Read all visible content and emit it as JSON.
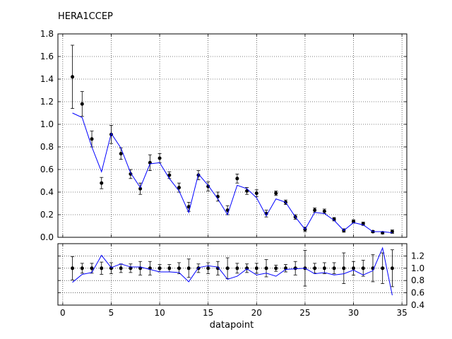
{
  "chart_data": [
    {
      "type": "scatter",
      "title": "HERA1CCEP",
      "xlabel": "datapoint",
      "ylabel": "",
      "xlim": [
        -0.5,
        35.5
      ],
      "ylim": [
        0,
        1.8
      ],
      "xticks": [
        "0",
        "5",
        "10",
        "15",
        "20",
        "25",
        "30",
        "35"
      ],
      "yticks": [
        "0.0",
        "0.2",
        "0.4",
        "0.6",
        "0.8",
        "1.0",
        "1.2",
        "1.4",
        "1.6",
        "1.8"
      ],
      "grid": true,
      "series": [
        {
          "kind": "points-with-errorbars",
          "color": "#000000",
          "x": [
            1,
            2,
            3,
            4,
            5,
            6,
            7,
            8,
            9,
            10,
            11,
            12,
            13,
            14,
            15,
            16,
            17,
            18,
            19,
            20,
            21,
            22,
            23,
            24,
            25,
            26,
            27,
            28,
            29,
            30,
            31,
            32,
            33,
            34
          ],
          "y": [
            1.42,
            1.18,
            0.87,
            0.48,
            0.91,
            0.74,
            0.56,
            0.43,
            0.66,
            0.7,
            0.55,
            0.44,
            0.27,
            0.55,
            0.45,
            0.36,
            0.24,
            0.52,
            0.41,
            0.39,
            0.21,
            0.39,
            0.31,
            0.18,
            0.07,
            0.24,
            0.23,
            0.16,
            0.06,
            0.14,
            0.12,
            0.05,
            0.04,
            0.05
          ],
          "err": [
            0.28,
            0.11,
            0.07,
            0.05,
            0.08,
            0.05,
            0.04,
            0.05,
            0.07,
            0.04,
            0.03,
            0.04,
            0.04,
            0.04,
            0.04,
            0.04,
            0.04,
            0.04,
            0.03,
            0.03,
            0.03,
            0.02,
            0.02,
            0.02,
            0.02,
            0.02,
            0.02,
            0.015,
            0.015,
            0.015,
            0.015,
            0.01,
            0.01,
            0.015
          ]
        },
        {
          "kind": "line",
          "color": "#0000ff",
          "x": [
            1,
            2,
            3,
            4,
            5,
            6,
            7,
            8,
            9,
            10,
            11,
            12,
            13,
            14,
            15,
            16,
            17,
            18,
            19,
            20,
            21,
            22,
            23,
            24,
            25,
            26,
            27,
            28,
            29,
            30,
            31,
            32,
            33,
            34
          ],
          "y": [
            1.1,
            1.06,
            0.8,
            0.58,
            0.92,
            0.79,
            0.57,
            0.44,
            0.65,
            0.66,
            0.52,
            0.41,
            0.22,
            0.56,
            0.46,
            0.34,
            0.2,
            0.46,
            0.43,
            0.35,
            0.19,
            0.34,
            0.31,
            0.18,
            0.07,
            0.22,
            0.21,
            0.15,
            0.06,
            0.13,
            0.11,
            0.05,
            0.05,
            0.04
          ]
        }
      ]
    },
    {
      "type": "scatter",
      "title": "",
      "xlabel": "datapoint",
      "ylabel": "",
      "xlim": [
        -0.5,
        35.5
      ],
      "ylim": [
        0.4,
        1.4
      ],
      "xticks": [
        "0",
        "5",
        "10",
        "15",
        "20",
        "25",
        "30",
        "35"
      ],
      "yticks": [
        "0.4",
        "0.6",
        "0.8",
        "1.0",
        "1.2"
      ],
      "grid": true,
      "series": [
        {
          "kind": "points-with-errorbars",
          "color": "#000000",
          "x": [
            1,
            2,
            3,
            4,
            5,
            6,
            7,
            8,
            9,
            10,
            11,
            12,
            13,
            14,
            15,
            16,
            17,
            18,
            19,
            20,
            21,
            22,
            23,
            24,
            25,
            26,
            27,
            28,
            29,
            30,
            31,
            32,
            33,
            34
          ],
          "y": [
            1,
            1,
            1,
            1,
            1,
            1,
            1,
            1,
            1,
            1,
            1,
            1,
            1,
            1,
            1,
            1,
            1,
            1,
            1,
            1,
            1,
            1,
            1,
            1,
            1,
            1,
            1,
            1,
            1,
            1,
            1,
            1,
            1,
            1
          ],
          "err": [
            0.19,
            0.08,
            0.08,
            0.1,
            0.09,
            0.07,
            0.07,
            0.11,
            0.11,
            0.06,
            0.06,
            0.09,
            0.15,
            0.07,
            0.09,
            0.11,
            0.17,
            0.08,
            0.07,
            0.08,
            0.14,
            0.05,
            0.06,
            0.11,
            0.29,
            0.08,
            0.09,
            0.09,
            0.25,
            0.11,
            0.13,
            0.22,
            0.25,
            0.3
          ]
        },
        {
          "kind": "line",
          "color": "#0000ff",
          "x": [
            1,
            2,
            3,
            4,
            5,
            6,
            7,
            8,
            9,
            10,
            11,
            12,
            13,
            14,
            15,
            16,
            17,
            18,
            19,
            20,
            21,
            22,
            23,
            24,
            25,
            26,
            27,
            28,
            29,
            30,
            31,
            32,
            33,
            34
          ],
          "y": [
            0.77,
            0.9,
            0.93,
            1.21,
            1.01,
            1.07,
            1.02,
            1.02,
            0.98,
            0.94,
            0.94,
            0.93,
            0.78,
            1.01,
            1.04,
            1.02,
            0.82,
            0.87,
            0.99,
            0.89,
            0.92,
            0.87,
            0.98,
            0.99,
            1.0,
            0.91,
            0.93,
            0.89,
            0.91,
            0.97,
            0.89,
            0.96,
            1.33,
            0.56
          ]
        }
      ]
    }
  ]
}
